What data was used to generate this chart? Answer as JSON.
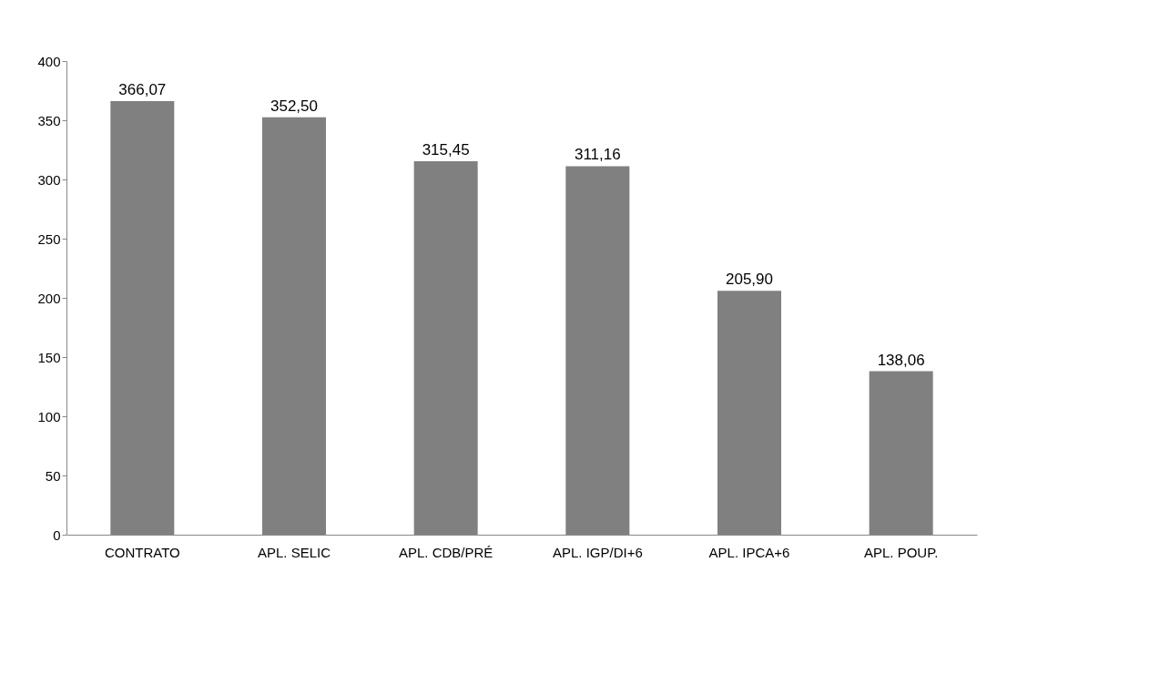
{
  "chart_data": {
    "type": "bar",
    "categories": [
      "CONTRATO",
      "APL. SELIC",
      "APL. CDB/PRÉ",
      "APL. IGP/DI+6",
      "APL. IPCA+6",
      "APL. POUP."
    ],
    "values": [
      366.07,
      352.5,
      315.45,
      311.16,
      205.9,
      138.06
    ],
    "value_labels": [
      "366,07",
      "352,50",
      "315,45",
      "311,16",
      "205,90",
      "138,06"
    ],
    "color": "#808080",
    "ylim": [
      0,
      400
    ],
    "yticks": [
      0,
      50,
      100,
      150,
      200,
      250,
      300,
      350,
      400
    ],
    "grid": false
  }
}
